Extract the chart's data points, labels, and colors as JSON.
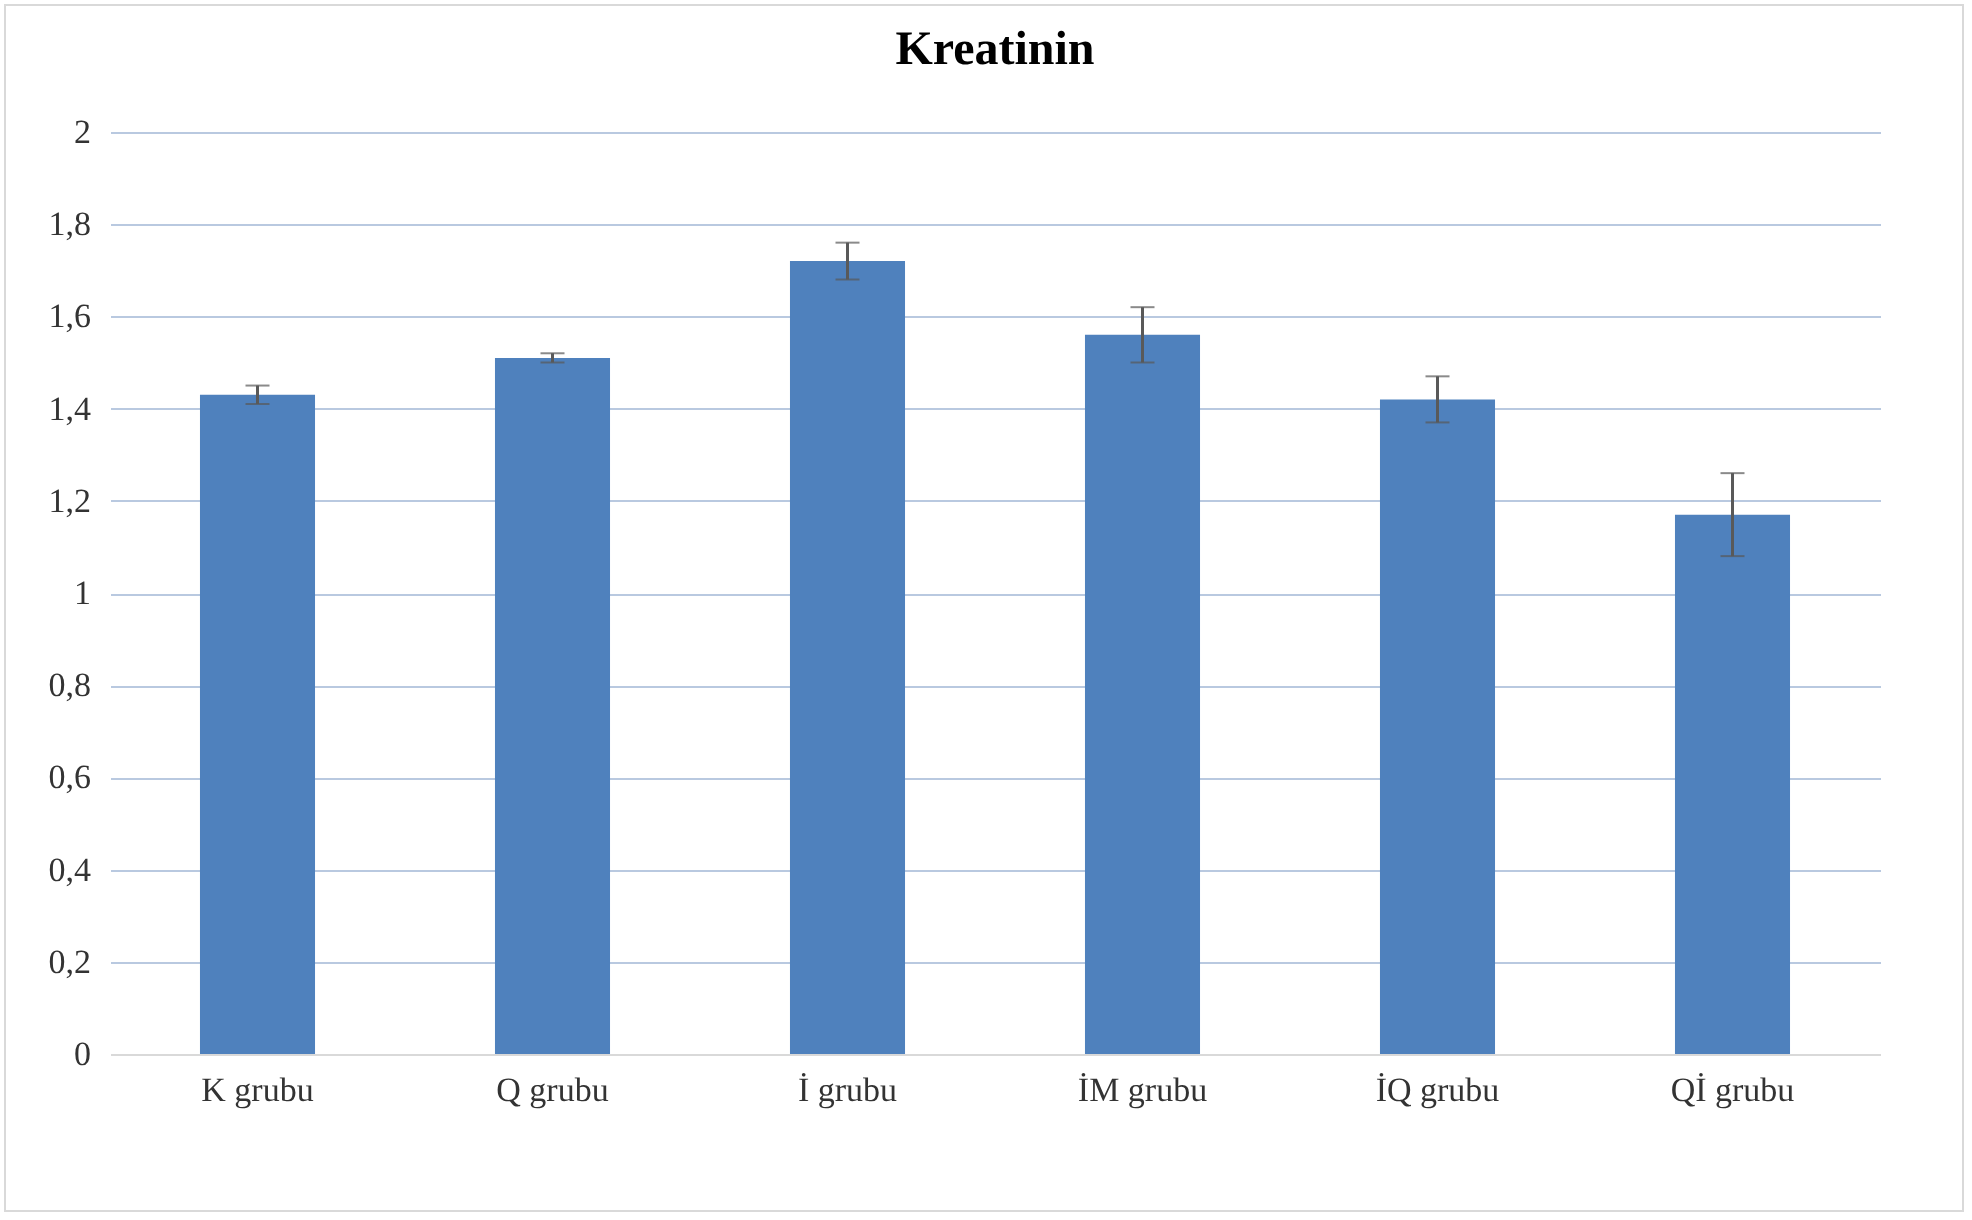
{
  "chart_data": {
    "type": "bar",
    "title": "Kreatinin",
    "categories": [
      "K grubu",
      "Q grubu",
      "İ grubu",
      "İM grubu",
      "İQ grubu",
      "Qİ grubu"
    ],
    "values": [
      1.43,
      1.51,
      1.72,
      1.56,
      1.42,
      1.17
    ],
    "errors": [
      0.02,
      0.01,
      0.04,
      0.06,
      0.05,
      0.09
    ],
    "color": "#4f81bd",
    "ylim": [
      0,
      2
    ],
    "yticks": [
      0,
      {
        "value": 0.2,
        "label": "0,2"
      },
      {
        "value": 0.4,
        "label": "0,4"
      },
      {
        "value": 0.6,
        "label": "0,6"
      },
      {
        "value": 0.8,
        "label": "0,8"
      },
      1,
      {
        "value": 1.2,
        "label": "1,2"
      },
      {
        "value": 1.4,
        "label": "1,4"
      },
      {
        "value": 1.6,
        "label": "1,6"
      },
      {
        "value": 1.8,
        "label": "1,8"
      },
      2
    ],
    "grid": "y"
  }
}
